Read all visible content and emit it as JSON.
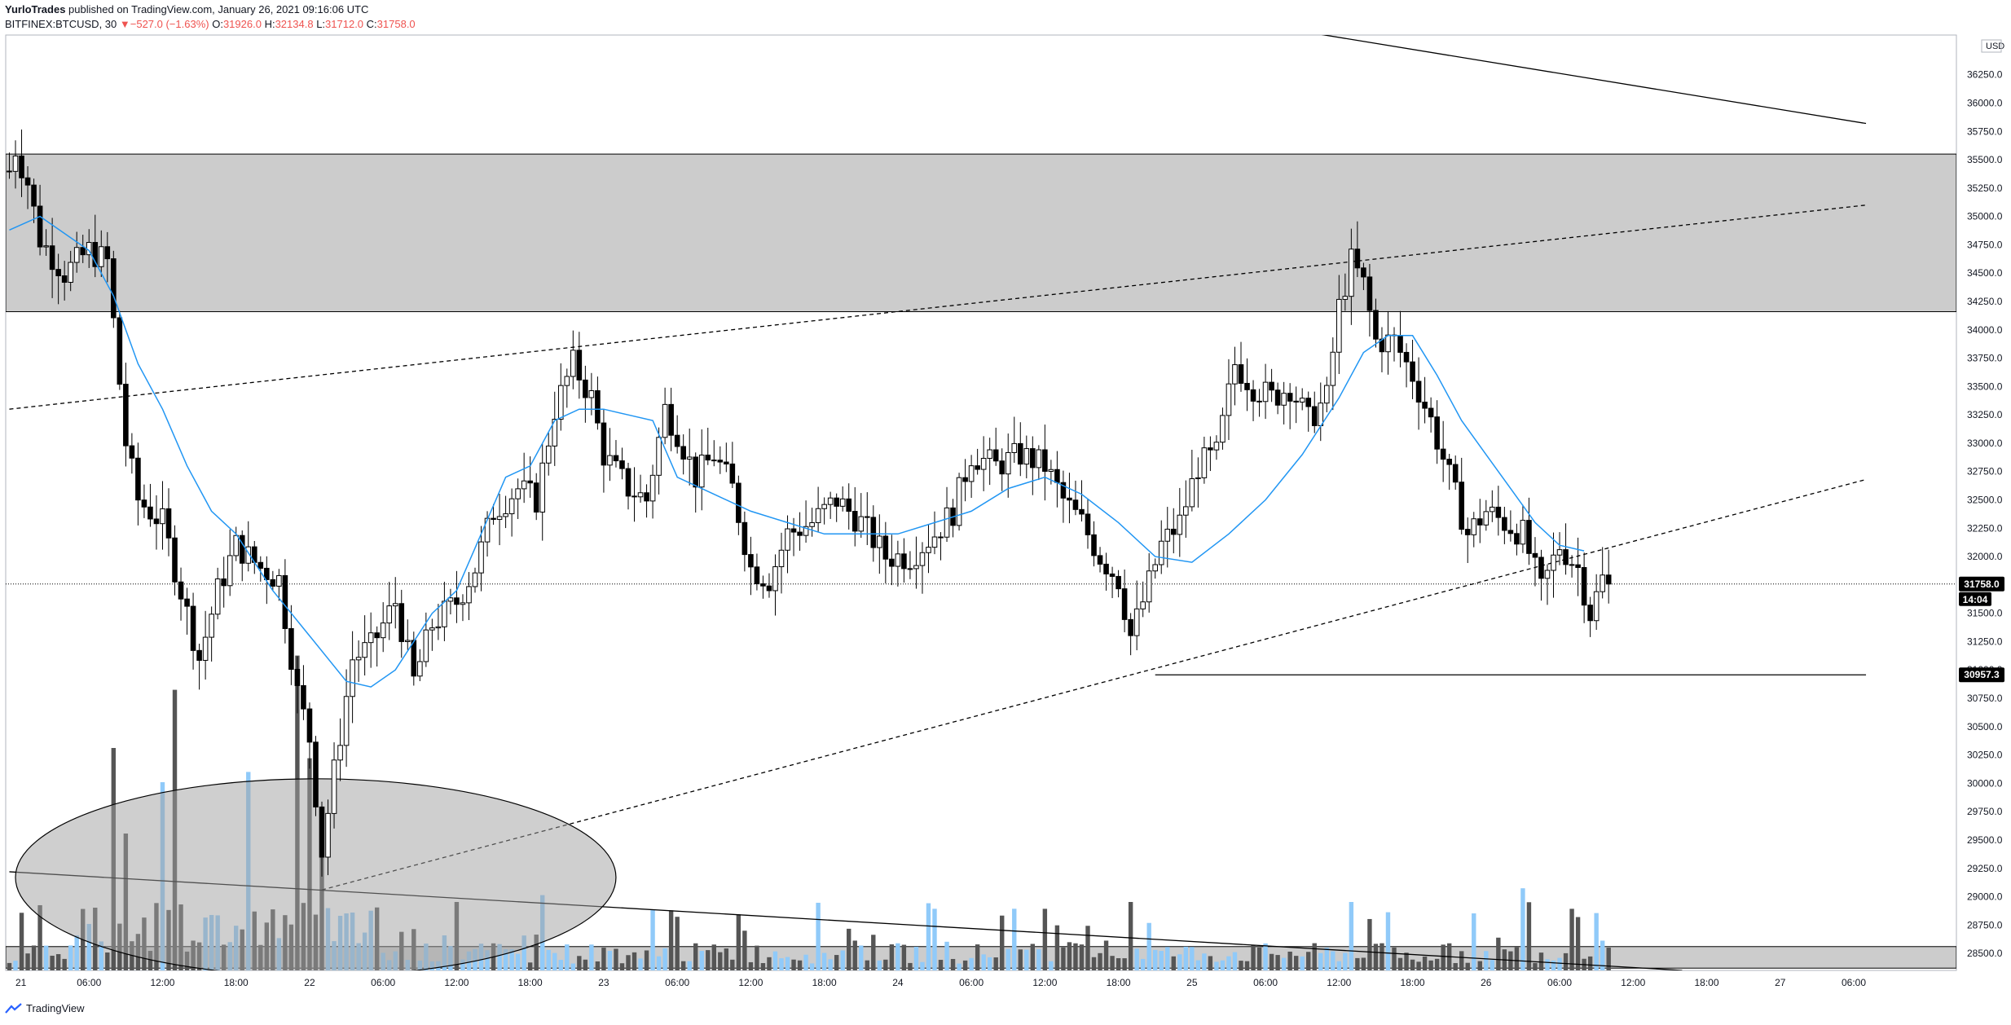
{
  "header": {
    "author": "YurloTrades",
    "published": "published on TradingView.com, January 26, 2021 09:16:06 UTC",
    "symbol": "BITFINEX:BTCUSD, 30",
    "change": "▼−527.0 (−1.63%)",
    "ohlc": [
      {
        "label": "O:",
        "value": "31926.0"
      },
      {
        "label": "H:",
        "value": "32134.8"
      },
      {
        "label": "L:",
        "value": "31712.0"
      },
      {
        "label": "C:",
        "value": "31758.0"
      }
    ]
  },
  "footer": {
    "brand": "TradingView",
    "logo_icon": "tradingview-logo-icon"
  },
  "colors": {
    "up": "#ffffff",
    "down": "#000000",
    "ma": "#2196f3",
    "zone": "#cccccc",
    "vol_up": "#90caf9",
    "vol_down": "#555555",
    "price_tag": "#000000",
    "negative": "#ef5350"
  },
  "chart_data": {
    "type": "candlestick",
    "currency": "USD",
    "ylim": [
      28350,
      36600
    ],
    "price_ticks": [
      28500,
      28750,
      29000,
      29250,
      29500,
      29750,
      30000,
      30250,
      30500,
      30750,
      31000,
      31250,
      31500,
      31750,
      32000,
      32250,
      32500,
      32750,
      33000,
      33250,
      33500,
      33750,
      34000,
      34250,
      34500,
      34750,
      35000,
      35250,
      35500,
      35750,
      36000,
      36250
    ],
    "time_range": [
      "21 00:00",
      "27 06:00"
    ],
    "x_ticks": [
      {
        "label": "21",
        "t": 0
      },
      {
        "label": "06:00",
        "t": 12
      },
      {
        "label": "12:00",
        "t": 24
      },
      {
        "label": "18:00",
        "t": 36
      },
      {
        "label": "22",
        "t": 48
      },
      {
        "label": "06:00",
        "t": 60
      },
      {
        "label": "12:00",
        "t": 72
      },
      {
        "label": "18:00",
        "t": 84
      },
      {
        "label": "23",
        "t": 96
      },
      {
        "label": "06:00",
        "t": 108
      },
      {
        "label": "12:00",
        "t": 120
      },
      {
        "label": "18:00",
        "t": 132
      },
      {
        "label": "24",
        "t": 144
      },
      {
        "label": "06:00",
        "t": 156
      },
      {
        "label": "12:00",
        "t": 168
      },
      {
        "label": "18:00",
        "t": 180
      },
      {
        "label": "25",
        "t": 192
      },
      {
        "label": "06:00",
        "t": 204
      },
      {
        "label": "12:00",
        "t": 216
      },
      {
        "label": "18:00",
        "t": 228
      },
      {
        "label": "26",
        "t": 240
      },
      {
        "label": "06:00",
        "t": 252
      },
      {
        "label": "12:00",
        "t": 264
      },
      {
        "label": "18:00",
        "t": 276
      },
      {
        "label": "27",
        "t": 288
      },
      {
        "label": "06:00",
        "t": 300
      }
    ],
    "close_anchors": [
      [
        -1,
        35400
      ],
      [
        0,
        35600
      ],
      [
        2,
        35300
      ],
      [
        4,
        34800
      ],
      [
        8,
        34500
      ],
      [
        12,
        34700
      ],
      [
        15,
        34600
      ],
      [
        18,
        33000
      ],
      [
        20,
        32500
      ],
      [
        24,
        32300
      ],
      [
        27,
        31700
      ],
      [
        30,
        31100
      ],
      [
        33,
        31700
      ],
      [
        36,
        32100
      ],
      [
        40,
        31900
      ],
      [
        43,
        31800
      ],
      [
        46,
        30800
      ],
      [
        48,
        30400
      ],
      [
        50,
        29400
      ],
      [
        52,
        30100
      ],
      [
        55,
        31100
      ],
      [
        58,
        31200
      ],
      [
        62,
        31600
      ],
      [
        65,
        30900
      ],
      [
        68,
        31400
      ],
      [
        72,
        31600
      ],
      [
        75,
        31900
      ],
      [
        78,
        32400
      ],
      [
        82,
        32600
      ],
      [
        85,
        32500
      ],
      [
        88,
        33300
      ],
      [
        91,
        33700
      ],
      [
        94,
        33400
      ],
      [
        96,
        32900
      ],
      [
        100,
        32600
      ],
      [
        103,
        32500
      ],
      [
        106,
        33300
      ],
      [
        108,
        33100
      ],
      [
        111,
        32700
      ],
      [
        114,
        32900
      ],
      [
        117,
        32600
      ],
      [
        120,
        31900
      ],
      [
        123,
        31800
      ],
      [
        126,
        32200
      ],
      [
        130,
        32300
      ],
      [
        134,
        32500
      ],
      [
        138,
        32300
      ],
      [
        142,
        32000
      ],
      [
        146,
        32000
      ],
      [
        150,
        32200
      ],
      [
        153,
        32400
      ],
      [
        156,
        32900
      ],
      [
        160,
        32800
      ],
      [
        164,
        32900
      ],
      [
        168,
        32800
      ],
      [
        171,
        32500
      ],
      [
        174,
        32300
      ],
      [
        177,
        32000
      ],
      [
        180,
        31800
      ],
      [
        182,
        31300
      ],
      [
        184,
        31600
      ],
      [
        187,
        32100
      ],
      [
        190,
        32300
      ],
      [
        193,
        32800
      ],
      [
        196,
        32900
      ],
      [
        199,
        33700
      ],
      [
        202,
        33500
      ],
      [
        205,
        33400
      ],
      [
        208,
        33500
      ],
      [
        211,
        33200
      ],
      [
        214,
        33400
      ],
      [
        216,
        34200
      ],
      [
        218,
        34600
      ],
      [
        220,
        34400
      ],
      [
        222,
        33900
      ],
      [
        225,
        33900
      ],
      [
        228,
        33600
      ],
      [
        231,
        33200
      ],
      [
        234,
        32700
      ],
      [
        237,
        32200
      ],
      [
        240,
        32400
      ],
      [
        243,
        32300
      ],
      [
        246,
        32200
      ],
      [
        249,
        31700
      ],
      [
        252,
        32100
      ],
      [
        255,
        31900
      ],
      [
        257,
        31500
      ],
      [
        259,
        31800
      ],
      [
        260,
        31758
      ]
    ],
    "moving_average": [
      [
        -1,
        34880
      ],
      [
        4,
        35000
      ],
      [
        12,
        34700
      ],
      [
        16,
        34300
      ],
      [
        20,
        33700
      ],
      [
        24,
        33300
      ],
      [
        28,
        32800
      ],
      [
        32,
        32400
      ],
      [
        36,
        32200
      ],
      [
        42,
        31700
      ],
      [
        48,
        31300
      ],
      [
        54,
        30900
      ],
      [
        58,
        30850
      ],
      [
        62,
        31000
      ],
      [
        68,
        31500
      ],
      [
        72,
        31700
      ],
      [
        76,
        32200
      ],
      [
        80,
        32700
      ],
      [
        84,
        32800
      ],
      [
        88,
        33200
      ],
      [
        92,
        33300
      ],
      [
        96,
        33300
      ],
      [
        100,
        33250
      ],
      [
        104,
        33200
      ],
      [
        108,
        32700
      ],
      [
        114,
        32550
      ],
      [
        120,
        32400
      ],
      [
        126,
        32300
      ],
      [
        132,
        32200
      ],
      [
        138,
        32200
      ],
      [
        144,
        32200
      ],
      [
        150,
        32300
      ],
      [
        156,
        32400
      ],
      [
        162,
        32600
      ],
      [
        168,
        32700
      ],
      [
        174,
        32550
      ],
      [
        180,
        32300
      ],
      [
        186,
        32000
      ],
      [
        192,
        31950
      ],
      [
        198,
        32200
      ],
      [
        204,
        32500
      ],
      [
        210,
        32900
      ],
      [
        216,
        33400
      ],
      [
        220,
        33800
      ],
      [
        224,
        33950
      ],
      [
        228,
        33950
      ],
      [
        232,
        33600
      ],
      [
        236,
        33200
      ],
      [
        240,
        32900
      ],
      [
        244,
        32600
      ],
      [
        248,
        32300
      ],
      [
        252,
        32100
      ],
      [
        256,
        32050
      ]
    ],
    "volume_spikes": [
      [
        16,
        0.65
      ],
      [
        18,
        0.4
      ],
      [
        24,
        0.55
      ],
      [
        26,
        0.82
      ],
      [
        38,
        0.58
      ],
      [
        46,
        0.92
      ],
      [
        48,
        0.62
      ],
      [
        50,
        0.45
      ],
      [
        72,
        0.2
      ],
      [
        86,
        0.22
      ],
      [
        168,
        0.18
      ],
      [
        182,
        0.2
      ],
      [
        218,
        0.2
      ],
      [
        224,
        0.17
      ],
      [
        246,
        0.24
      ],
      [
        254,
        0.18
      ]
    ],
    "zones": [
      {
        "name": "resistance-zone",
        "from": 34160,
        "to": 35550
      },
      {
        "name": "bottom-zone",
        "from": 28370,
        "to": 28560
      }
    ],
    "trend_lines": [
      {
        "name": "upper-resistance-line",
        "style": "solid",
        "p1": [
          174,
          36950
        ],
        "p2": [
          302,
          35820
        ]
      },
      {
        "name": "upper-channel-line",
        "style": "dashed",
        "p1": [
          -1,
          33300
        ],
        "p2": [
          302,
          35100
        ]
      },
      {
        "name": "lower-channel-line",
        "style": "dashed",
        "p1": [
          50,
          29060
        ],
        "p2": [
          302,
          32680
        ]
      },
      {
        "name": "volume-trend-line",
        "style": "solid",
        "p1": [
          -1,
          29220
        ],
        "p2": [
          272,
          28350
        ]
      },
      {
        "name": "support-line",
        "style": "solid",
        "p1": [
          186,
          30957
        ],
        "p2": [
          302,
          30957
        ]
      }
    ],
    "ellipse": {
      "cx": 49,
      "cy": 29170,
      "rx_bars": 49,
      "ry_price": 870
    },
    "last_price": {
      "value": "31758.0",
      "countdown": "14:04"
    },
    "level_tag": "30957.3"
  }
}
